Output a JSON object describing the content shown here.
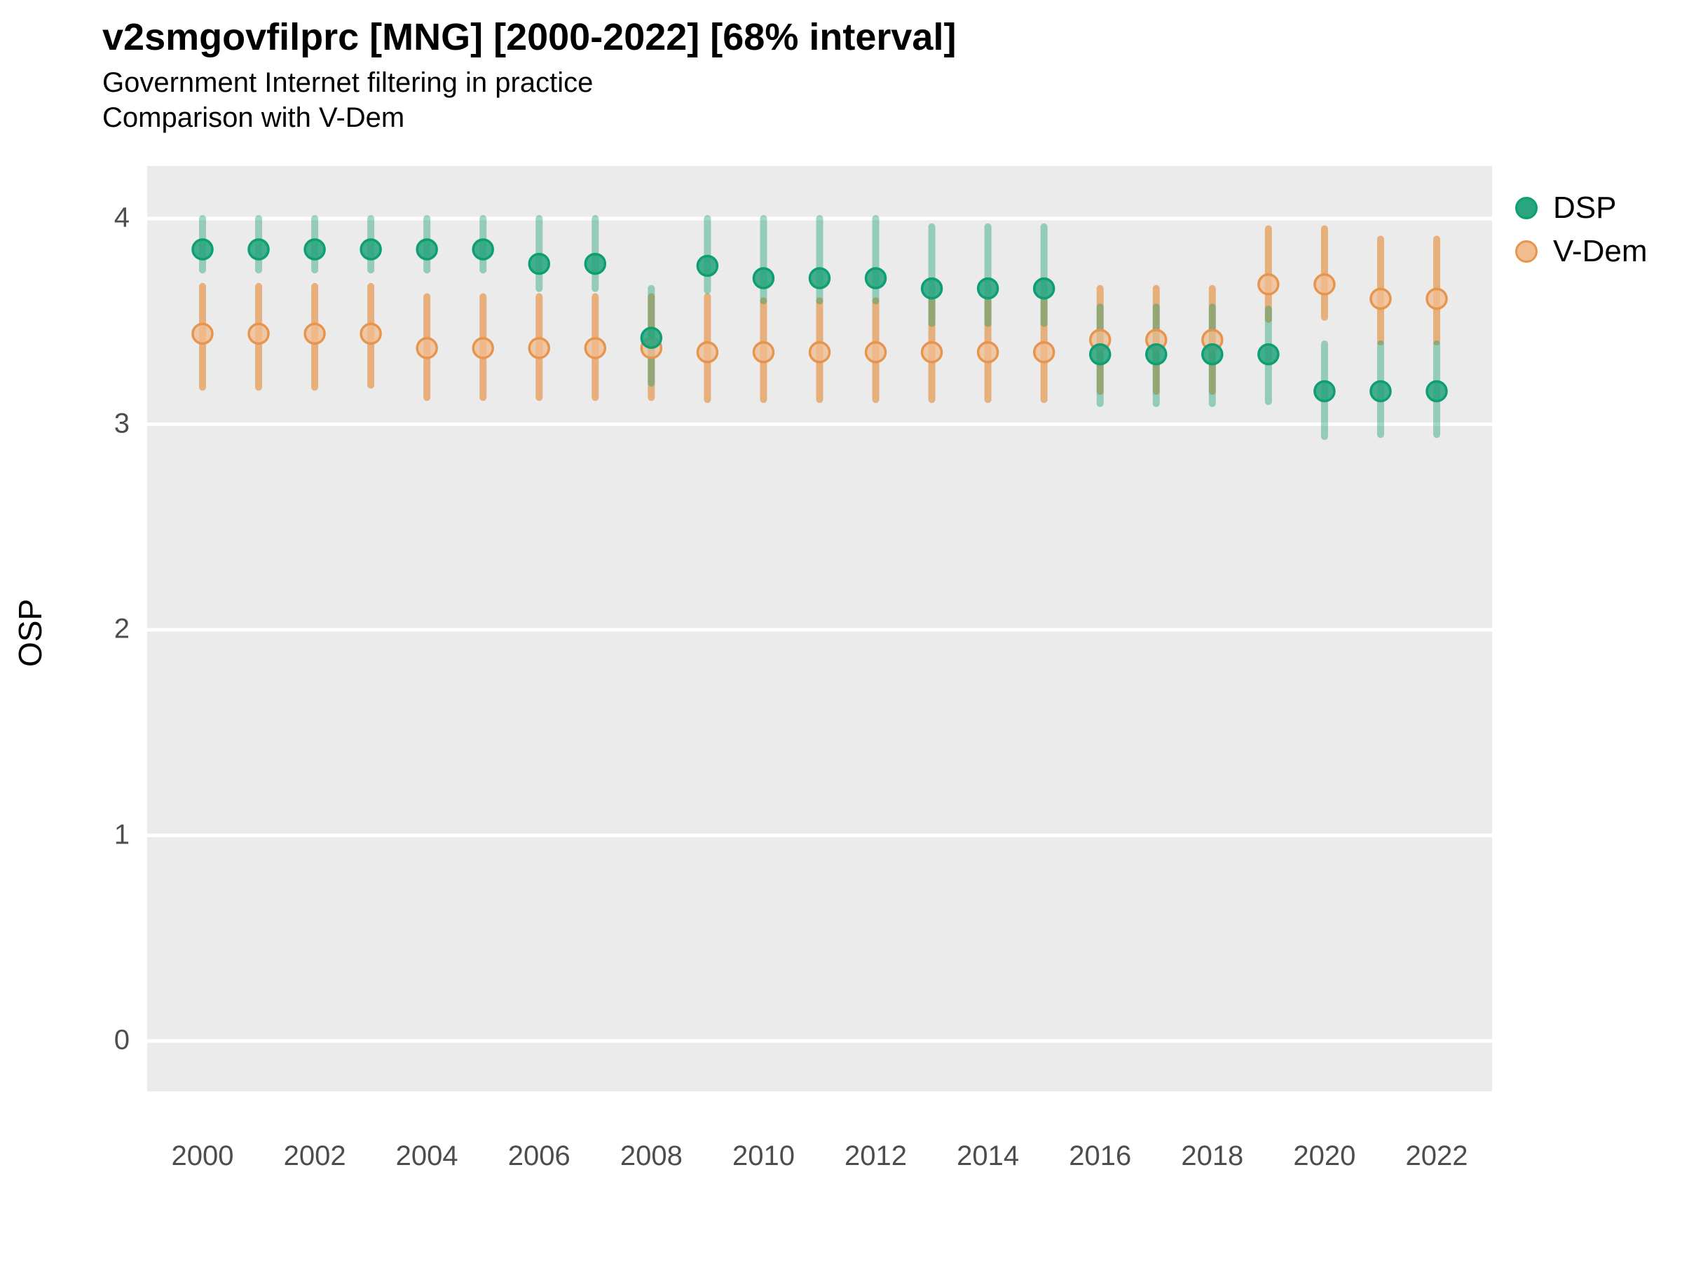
{
  "title": "v2smgovfilprc [MNG] [2000-2022] [68% interval]",
  "subtitle1": "Government Internet filtering in practice",
  "subtitle2": "Comparison with V-Dem",
  "ylabel": "OSP",
  "colors": {
    "panel_bg": "#ebebeb",
    "grid": "#ffffff",
    "tick_text": "#4d4d4d",
    "dsp_fill": "#2aa57d",
    "dsp_stroke": "#0d9f72",
    "dsp_bar": "rgba(20,155,110,0.40)",
    "vdem_fill": "#f1bd8f",
    "vdem_stroke": "#e6954e",
    "vdem_bar": "rgba(229,139,55,0.62)"
  },
  "legend": [
    {
      "name": "dsp",
      "label": "DSP"
    },
    {
      "name": "vdem",
      "label": "V-Dem"
    }
  ],
  "chart_data": {
    "type": "scatter",
    "title": "v2smgovfilprc [MNG] [2000-2022] [68% interval]",
    "subtitle": "Government Internet filtering in practice — Comparison with V-Dem",
    "xlabel": "",
    "ylabel": "OSP",
    "interval": "68%",
    "x": [
      2000,
      2001,
      2002,
      2003,
      2004,
      2005,
      2006,
      2007,
      2008,
      2009,
      2010,
      2011,
      2012,
      2013,
      2014,
      2015,
      2016,
      2017,
      2018,
      2019,
      2020,
      2021,
      2022
    ],
    "x_ticks": [
      2000,
      2002,
      2004,
      2006,
      2008,
      2010,
      2012,
      2014,
      2016,
      2018,
      2020,
      2022
    ],
    "y_ticks": [
      4,
      3,
      2,
      1,
      0
    ],
    "ylim": [
      -0.25,
      4.26
    ],
    "grid": "major-horizontal-white-on-gray",
    "legend_position": "right-top",
    "series": [
      {
        "name": "DSP",
        "key": "dsp",
        "values": [
          3.85,
          3.85,
          3.85,
          3.85,
          3.85,
          3.85,
          3.78,
          3.78,
          3.42,
          3.77,
          3.71,
          3.71,
          3.71,
          3.66,
          3.66,
          3.66,
          3.34,
          3.34,
          3.34,
          3.34,
          3.16,
          3.16,
          3.16
        ],
        "lo": [
          3.75,
          3.75,
          3.75,
          3.75,
          3.75,
          3.75,
          3.66,
          3.66,
          3.2,
          3.65,
          3.6,
          3.6,
          3.6,
          3.49,
          3.49,
          3.49,
          3.1,
          3.1,
          3.1,
          3.11,
          2.94,
          2.95,
          2.95
        ],
        "hi": [
          4.0,
          4.0,
          4.0,
          4.0,
          4.0,
          4.0,
          4.0,
          4.0,
          3.66,
          4.0,
          4.0,
          4.0,
          4.0,
          3.96,
          3.96,
          3.96,
          3.57,
          3.57,
          3.57,
          3.56,
          3.39,
          3.39,
          3.39
        ]
      },
      {
        "name": "V-Dem",
        "key": "vdem",
        "values": [
          3.44,
          3.44,
          3.44,
          3.44,
          3.37,
          3.37,
          3.37,
          3.37,
          3.37,
          3.35,
          3.35,
          3.35,
          3.35,
          3.35,
          3.35,
          3.35,
          3.41,
          3.41,
          3.41,
          3.68,
          3.68,
          3.61,
          3.61
        ],
        "lo": [
          3.18,
          3.18,
          3.18,
          3.19,
          3.13,
          3.13,
          3.13,
          3.13,
          3.13,
          3.12,
          3.12,
          3.12,
          3.12,
          3.12,
          3.12,
          3.12,
          3.16,
          3.16,
          3.16,
          3.51,
          3.52,
          3.4,
          3.4
        ],
        "hi": [
          3.67,
          3.67,
          3.67,
          3.67,
          3.62,
          3.62,
          3.62,
          3.62,
          3.62,
          3.62,
          3.6,
          3.6,
          3.6,
          3.6,
          3.6,
          3.6,
          3.66,
          3.66,
          3.66,
          3.95,
          3.95,
          3.9,
          3.9
        ]
      }
    ]
  }
}
